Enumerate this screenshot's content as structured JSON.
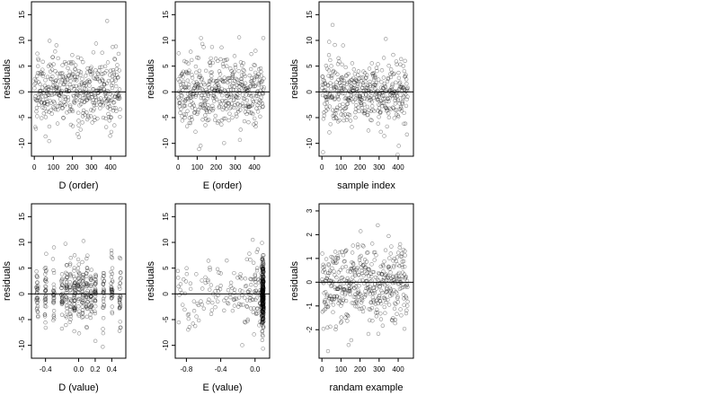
{
  "chart_data": [
    {
      "type": "scatter",
      "xlabel": "D (order)",
      "ylabel": "residuals",
      "xlim": [
        -15,
        480
      ],
      "ylim": [
        -12.5,
        17.5
      ],
      "xticks": [
        0,
        100,
        200,
        300,
        400
      ],
      "yticks": [
        -10,
        -5,
        0,
        5,
        10,
        15
      ],
      "hline": 0,
      "x_kind": "index",
      "n_points": 450,
      "residual_scale": 4
    },
    {
      "type": "scatter",
      "xlabel": "E (order)",
      "ylabel": "residuals",
      "xlim": [
        -15,
        480
      ],
      "ylim": [
        -12.5,
        17.5
      ],
      "xticks": [
        0,
        100,
        200,
        300,
        400
      ],
      "yticks": [
        -10,
        -5,
        0,
        5,
        10,
        15
      ],
      "hline": 0,
      "x_kind": "index",
      "n_points": 450,
      "residual_scale": 4
    },
    {
      "type": "scatter",
      "xlabel": "sample index",
      "ylabel": "residuals",
      "xlim": [
        -15,
        480
      ],
      "ylim": [
        -12.5,
        17.5
      ],
      "xticks": [
        0,
        100,
        200,
        300,
        400
      ],
      "yticks": [
        -10,
        -5,
        0,
        5,
        10,
        15
      ],
      "hline": 0,
      "x_kind": "index",
      "n_points": 450,
      "residual_scale": 4
    },
    {
      "type": "scatter",
      "xlabel": "D (value)",
      "ylabel": "residuals",
      "xlim": [
        -0.57,
        0.57
      ],
      "ylim": [
        -12.5,
        17.5
      ],
      "xticks": [
        -0.4,
        0.0,
        0.2,
        0.4
      ],
      "xtick_labels": [
        "-0.4",
        "0.0",
        "0.2",
        "0.4"
      ],
      "yticks": [
        -10,
        -5,
        0,
        5,
        10,
        15
      ],
      "hline": 0,
      "x_kind": "clustered",
      "x_centers": [
        -0.5,
        -0.4,
        -0.3,
        -0.2,
        -0.15,
        -0.1,
        -0.05,
        0.0,
        0.05,
        0.1,
        0.15,
        0.2,
        0.3,
        0.4,
        0.5
      ],
      "n_points": 450,
      "residual_scale": 4
    },
    {
      "type": "scatter",
      "xlabel": "E (value)",
      "ylabel": "residuals",
      "xlim": [
        -0.93,
        0.17
      ],
      "ylim": [
        -12.5,
        17.5
      ],
      "xticks": [
        -0.8,
        -0.4,
        0.0
      ],
      "xtick_labels": [
        "-0.8",
        "-0.4",
        "0.0"
      ],
      "yticks": [
        -10,
        -5,
        0,
        5,
        10,
        15
      ],
      "hline": 0,
      "x_kind": "skewed",
      "x_max": 0.1,
      "n_points": 450,
      "residual_scale": 4
    },
    {
      "type": "scatter",
      "xlabel": "randam example",
      "ylabel": "residuals",
      "xlim": [
        -15,
        480
      ],
      "ylim": [
        -3.2,
        3.3
      ],
      "xticks": [
        0,
        100,
        200,
        300,
        400
      ],
      "yticks": [
        -2,
        -1,
        0,
        1,
        2,
        3
      ],
      "hline": 0,
      "x_kind": "index",
      "n_points": 450,
      "residual_scale": 1
    }
  ]
}
